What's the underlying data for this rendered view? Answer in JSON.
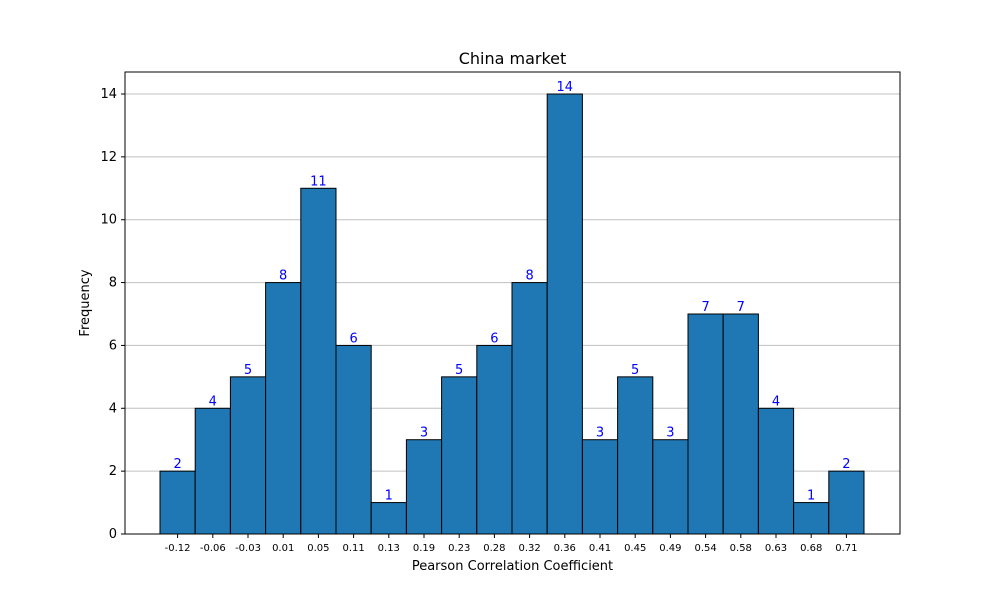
{
  "chart_data": {
    "type": "bar",
    "title": "China market",
    "xlabel": "Pearson Correlation Coefficient",
    "ylabel": "Frequency",
    "categories": [
      "-0.12",
      "-0.06",
      "-0.03",
      "0.01",
      "0.05",
      "0.11",
      "0.13",
      "0.19",
      "0.23",
      "0.28",
      "0.32",
      "0.36",
      "0.41",
      "0.45",
      "0.49",
      "0.54",
      "0.58",
      "0.63",
      "0.68",
      "0.71"
    ],
    "values": [
      2,
      4,
      5,
      8,
      11,
      6,
      1,
      3,
      5,
      6,
      8,
      14,
      3,
      5,
      3,
      7,
      7,
      4,
      1,
      2
    ],
    "ylim": [
      0,
      14.7
    ],
    "yticks": [
      0,
      2,
      4,
      6,
      8,
      10,
      12,
      14
    ],
    "grid": "horizontal",
    "bar_color": "#1f77b4",
    "bar_edge_color": "#000000",
    "label_color": "#0000ff",
    "grid_color": "#c0c0c0"
  }
}
